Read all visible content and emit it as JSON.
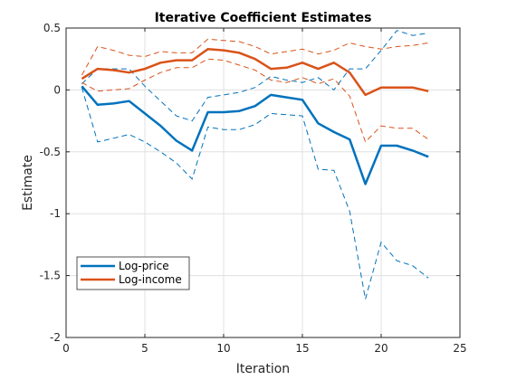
{
  "chart_data": {
    "type": "line",
    "title": "Iterative Coefficient Estimates",
    "xlabel": "Iteration",
    "ylabel": "Estimate",
    "xlim": [
      0,
      25
    ],
    "ylim": [
      -2,
      0.5
    ],
    "x_ticks": [
      0,
      5,
      10,
      15,
      20,
      25
    ],
    "y_ticks": [
      -2,
      -1.5,
      -1,
      -0.5,
      0,
      0.5
    ],
    "x_tick_labels": [
      "0",
      "5",
      "10",
      "15",
      "20",
      "25"
    ],
    "y_tick_labels": [
      "-2",
      "-1.5",
      "-1",
      "-0.5",
      "0",
      "0.5"
    ],
    "grid": true,
    "legend_position": "bottom-left",
    "x": [
      1,
      2,
      3,
      4,
      5,
      6,
      7,
      8,
      9,
      10,
      11,
      12,
      13,
      14,
      15,
      16,
      17,
      18,
      19,
      20,
      21,
      22,
      23
    ],
    "series": [
      {
        "name": "Log-price",
        "color": "#0072BD",
        "values": [
          0.03,
          -0.12,
          -0.11,
          -0.09,
          -0.19,
          -0.29,
          -0.41,
          -0.49,
          -0.18,
          -0.18,
          -0.17,
          -0.13,
          -0.04,
          -0.06,
          -0.08,
          -0.27,
          -0.34,
          -0.4,
          -0.76,
          -0.45,
          -0.45,
          -0.49,
          -0.54
        ],
        "lower": [
          0.02,
          -0.42,
          -0.39,
          -0.36,
          -0.42,
          -0.5,
          -0.59,
          -0.72,
          -0.3,
          -0.32,
          -0.32,
          -0.28,
          -0.19,
          -0.2,
          -0.21,
          -0.64,
          -0.65,
          -0.98,
          -1.69,
          -1.23,
          -1.38,
          -1.42,
          -1.52
        ],
        "upper": [
          0.05,
          0.17,
          0.17,
          0.17,
          0.03,
          -0.09,
          -0.21,
          -0.25,
          -0.06,
          -0.04,
          -0.02,
          0.02,
          0.11,
          0.08,
          0.06,
          0.1,
          0.0,
          0.17,
          0.17,
          0.32,
          0.48,
          0.44,
          0.46
        ]
      },
      {
        "name": "Log-income",
        "color": "#D95319",
        "values": [
          0.09,
          0.17,
          0.16,
          0.14,
          0.17,
          0.22,
          0.24,
          0.24,
          0.33,
          0.32,
          0.3,
          0.25,
          0.17,
          0.18,
          0.22,
          0.17,
          0.22,
          0.14,
          -0.04,
          0.02,
          0.02,
          0.02,
          -0.01
        ],
        "lower": [
          0.06,
          -0.01,
          0.0,
          0.01,
          0.08,
          0.14,
          0.18,
          0.18,
          0.25,
          0.24,
          0.2,
          0.16,
          0.08,
          0.06,
          0.1,
          0.05,
          0.09,
          -0.05,
          -0.42,
          -0.29,
          -0.31,
          -0.31,
          -0.4
        ],
        "upper": [
          0.12,
          0.35,
          0.32,
          0.28,
          0.27,
          0.31,
          0.3,
          0.3,
          0.41,
          0.4,
          0.39,
          0.35,
          0.29,
          0.31,
          0.33,
          0.29,
          0.32,
          0.38,
          0.35,
          0.33,
          0.35,
          0.36,
          0.38
        ]
      }
    ]
  }
}
